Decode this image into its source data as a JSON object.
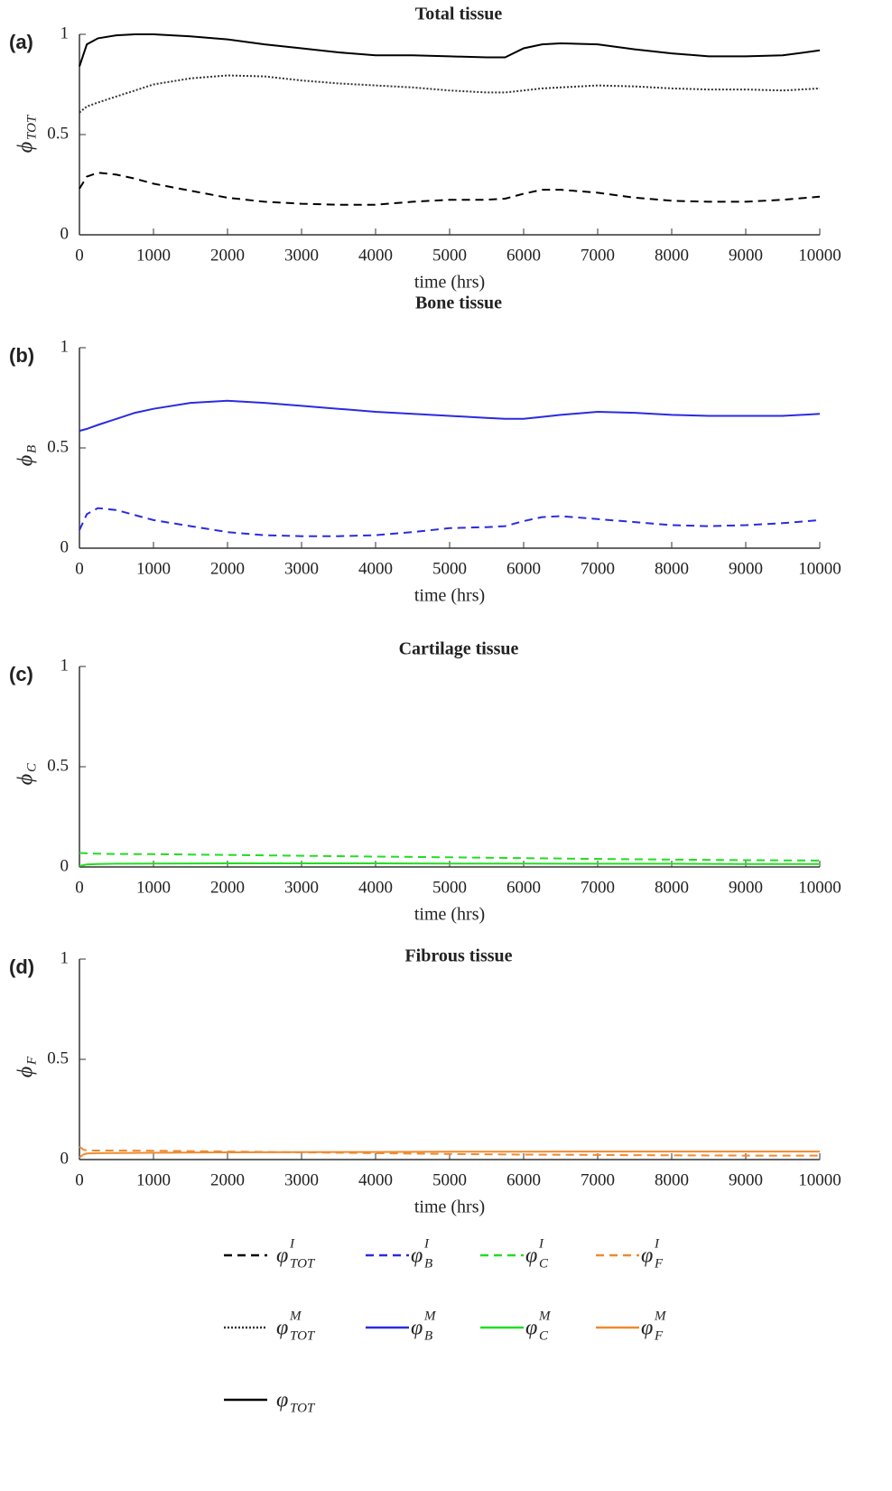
{
  "chart_data": [
    {
      "type": "line",
      "panel_label": "(a)",
      "title": "Total tissue",
      "xlabel": "time (hrs)",
      "ylabel": {
        "symbol": "ϕ",
        "sub": "TOT"
      },
      "x": [
        0,
        100,
        250,
        500,
        750,
        1000,
        1500,
        2000,
        2500,
        3000,
        3500,
        4000,
        4500,
        5000,
        5500,
        5750,
        6000,
        6250,
        6500,
        7000,
        7500,
        8000,
        8500,
        9000,
        9500,
        10000
      ],
      "xlim": [
        0,
        10000
      ],
      "ylim": [
        0,
        1
      ],
      "xticks": [
        0,
        1000,
        2000,
        3000,
        4000,
        5000,
        6000,
        7000,
        8000,
        9000,
        10000
      ],
      "yticks": [
        0,
        0.5,
        1
      ],
      "series": [
        {
          "name": {
            "symbol": "φ",
            "sup": "I",
            "sub": "TOT"
          },
          "color": "#000000",
          "dash": "dashed",
          "values": [
            0.23,
            0.29,
            0.31,
            0.3,
            0.28,
            0.255,
            0.22,
            0.185,
            0.165,
            0.155,
            0.15,
            0.15,
            0.165,
            0.175,
            0.175,
            0.18,
            0.205,
            0.225,
            0.225,
            0.21,
            0.185,
            0.17,
            0.165,
            0.165,
            0.175,
            0.19
          ]
        },
        {
          "name": {
            "symbol": "φ",
            "sup": "M",
            "sub": "TOT"
          },
          "color": "#333333",
          "dash": "dotted",
          "values": [
            0.61,
            0.64,
            0.66,
            0.69,
            0.72,
            0.75,
            0.78,
            0.795,
            0.79,
            0.77,
            0.755,
            0.745,
            0.735,
            0.72,
            0.71,
            0.71,
            0.72,
            0.73,
            0.735,
            0.745,
            0.74,
            0.73,
            0.725,
            0.725,
            0.72,
            0.73
          ]
        },
        {
          "name": {
            "symbol": "φ",
            "sub": "TOT"
          },
          "color": "#000000",
          "dash": "solid",
          "values": [
            0.84,
            0.95,
            0.98,
            0.995,
            1.0,
            1.0,
            0.99,
            0.975,
            0.95,
            0.93,
            0.91,
            0.895,
            0.895,
            0.89,
            0.885,
            0.885,
            0.93,
            0.95,
            0.955,
            0.95,
            0.925,
            0.905,
            0.89,
            0.89,
            0.895,
            0.92
          ]
        }
      ]
    },
    {
      "type": "line",
      "panel_label": "(b)",
      "title": "Bone tissue",
      "xlabel": "time (hrs)",
      "ylabel": {
        "symbol": "ϕ",
        "sub": "B"
      },
      "x": [
        0,
        100,
        250,
        500,
        750,
        1000,
        1500,
        2000,
        2500,
        3000,
        3500,
        4000,
        4500,
        5000,
        5500,
        5750,
        6000,
        6250,
        6500,
        7000,
        7500,
        8000,
        8500,
        9000,
        9500,
        10000
      ],
      "xlim": [
        0,
        10000
      ],
      "ylim": [
        0,
        1
      ],
      "xticks": [
        0,
        1000,
        2000,
        3000,
        4000,
        5000,
        6000,
        7000,
        8000,
        9000,
        10000
      ],
      "yticks": [
        0,
        0.5,
        1
      ],
      "series": [
        {
          "name": {
            "symbol": "φ",
            "sup": "I",
            "sub": "B"
          },
          "color": "#2b2bdf",
          "dash": "dashed",
          "values": [
            0.09,
            0.17,
            0.2,
            0.19,
            0.165,
            0.14,
            0.11,
            0.08,
            0.065,
            0.06,
            0.06,
            0.065,
            0.08,
            0.1,
            0.105,
            0.11,
            0.135,
            0.155,
            0.16,
            0.145,
            0.13,
            0.115,
            0.11,
            0.115,
            0.125,
            0.14
          ]
        },
        {
          "name": {
            "symbol": "φ",
            "sup": "M",
            "sub": "B"
          },
          "color": "#2b2bdf",
          "dash": "solid",
          "values": [
            0.585,
            0.595,
            0.615,
            0.645,
            0.675,
            0.695,
            0.725,
            0.735,
            0.725,
            0.71,
            0.695,
            0.68,
            0.67,
            0.66,
            0.65,
            0.645,
            0.645,
            0.655,
            0.665,
            0.68,
            0.675,
            0.665,
            0.66,
            0.66,
            0.66,
            0.67
          ]
        }
      ]
    },
    {
      "type": "line",
      "panel_label": "(c)",
      "title": "Cartilage tissue",
      "xlabel": "time (hrs)",
      "ylabel": {
        "symbol": "ϕ",
        "sub": "C"
      },
      "x": [
        0,
        100,
        250,
        500,
        1000,
        2000,
        3000,
        4000,
        5000,
        6000,
        7000,
        8000,
        9000,
        10000
      ],
      "xlim": [
        0,
        10000
      ],
      "ylim": [
        0,
        1
      ],
      "xticks": [
        0,
        1000,
        2000,
        3000,
        4000,
        5000,
        6000,
        7000,
        8000,
        9000,
        10000
      ],
      "yticks": [
        0,
        0.5,
        1
      ],
      "series": [
        {
          "name": {
            "symbol": "φ",
            "sup": "I",
            "sub": "C"
          },
          "color": "#22dd22",
          "dash": "dashed",
          "values": [
            0.07,
            0.068,
            0.066,
            0.065,
            0.064,
            0.06,
            0.056,
            0.052,
            0.048,
            0.044,
            0.04,
            0.037,
            0.034,
            0.032
          ]
        },
        {
          "name": {
            "symbol": "φ",
            "sup": "M",
            "sub": "C"
          },
          "color": "#22dd22",
          "dash": "solid",
          "values": [
            0.005,
            0.012,
            0.015,
            0.016,
            0.017,
            0.018,
            0.018,
            0.018,
            0.017,
            0.017,
            0.016,
            0.016,
            0.015,
            0.015
          ]
        }
      ]
    },
    {
      "type": "line",
      "panel_label": "(d)",
      "title": "Fibrous tissue",
      "xlabel": "time (hrs)",
      "ylabel": {
        "symbol": "ϕ",
        "sub": "F"
      },
      "x": [
        0,
        50,
        100,
        250,
        500,
        1000,
        2000,
        3000,
        4000,
        5000,
        6000,
        7000,
        8000,
        9000,
        10000
      ],
      "xlim": [
        0,
        10000
      ],
      "ylim": [
        0,
        1
      ],
      "xticks": [
        0,
        1000,
        2000,
        3000,
        4000,
        5000,
        6000,
        7000,
        8000,
        9000,
        10000
      ],
      "yticks": [
        0,
        0.5,
        1
      ],
      "series": [
        {
          "name": {
            "symbol": "φ",
            "sup": "I",
            "sub": "F"
          },
          "color": "#f08a30",
          "dash": "dashed",
          "values": [
            0.065,
            0.05,
            0.045,
            0.045,
            0.045,
            0.044,
            0.04,
            0.036,
            0.032,
            0.028,
            0.025,
            0.023,
            0.021,
            0.02,
            0.02
          ]
        },
        {
          "name": {
            "symbol": "φ",
            "sup": "M",
            "sub": "F"
          },
          "color": "#f08a30",
          "dash": "solid",
          "values": [
            0.01,
            0.025,
            0.03,
            0.032,
            0.033,
            0.034,
            0.036,
            0.037,
            0.038,
            0.039,
            0.039,
            0.04,
            0.04,
            0.04,
            0.04
          ]
        }
      ]
    }
  ]
}
